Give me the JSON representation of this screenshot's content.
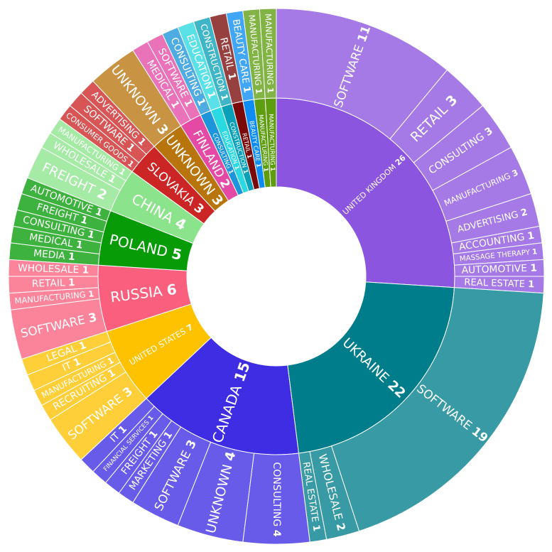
{
  "chart_data": {
    "type": "sunburst",
    "title": "",
    "colors": {
      "United Kingdom": "#8c55e0",
      "Ukraine": "#007d8a",
      "Canada": "#3f2de4",
      "United States": "#fec200",
      "Russia": "#fa607e",
      "Poland": "#079c07",
      "China": "#8be48b",
      "Slovakia": "#cc2525",
      "Unknown": "#b8740d",
      "Finland": "#e44aa5",
      "Education": "#2bd9e2",
      "Retail": "#7a0a0a",
      "Beauty Care": "#0d8df4",
      "Manufacturing": "#5e9d10",
      "Construction": "#0aa0b8",
      "Software": "#ff8a00",
      "Consulting": "#1d95db"
    },
    "countries": [
      {
        "name": "United Kingdom",
        "value": 26,
        "children": [
          {
            "name": "Software",
            "value": 11
          },
          {
            "name": "Retail",
            "value": 3
          },
          {
            "name": "Consulting",
            "value": 3
          },
          {
            "name": "Manufacturing",
            "value": 3
          },
          {
            "name": "Advertising",
            "value": 2
          },
          {
            "name": "Accounting",
            "value": 1
          },
          {
            "name": "Massage Therapy",
            "value": 1
          },
          {
            "name": "Automotive",
            "value": 1
          },
          {
            "name": "Real Estate",
            "value": 1
          }
        ]
      },
      {
        "name": "Ukraine",
        "value": 22,
        "children": [
          {
            "name": "Software",
            "value": 19
          },
          {
            "name": "Wholesale",
            "value": 2
          },
          {
            "name": "Real Estate",
            "value": 1
          }
        ]
      },
      {
        "name": "Canada",
        "value": 15,
        "children": [
          {
            "name": "Consulting",
            "value": 4
          },
          {
            "name": "Unknown",
            "value": 4
          },
          {
            "name": "Software",
            "value": 3
          },
          {
            "name": "Marketing",
            "value": 1
          },
          {
            "name": "Freight",
            "value": 1
          },
          {
            "name": "Financial Services",
            "value": 1
          },
          {
            "name": "IT",
            "value": 1
          }
        ]
      },
      {
        "name": "United States",
        "value": 7,
        "children": [
          {
            "name": "Software",
            "value": 3
          },
          {
            "name": "Recruiting",
            "value": 1
          },
          {
            "name": "Manufacturing",
            "value": 1
          },
          {
            "name": "IT",
            "value": 1
          },
          {
            "name": "Legal",
            "value": 1
          }
        ]
      },
      {
        "name": "Russia",
        "value": 6,
        "children": [
          {
            "name": "Software",
            "value": 3
          },
          {
            "name": "Manufacturing",
            "value": 1
          },
          {
            "name": "Retail",
            "value": 1
          },
          {
            "name": "Wholesale",
            "value": 1
          }
        ]
      },
      {
        "name": "Poland",
        "value": 5,
        "children": [
          {
            "name": "Media",
            "value": 1
          },
          {
            "name": "Medical",
            "value": 1
          },
          {
            "name": "Consulting",
            "value": 1
          },
          {
            "name": "Freight",
            "value": 1
          },
          {
            "name": "Automotive",
            "value": 1
          }
        ]
      },
      {
        "name": "China",
        "value": 4,
        "children": [
          {
            "name": "Freight",
            "value": 2
          },
          {
            "name": "Wholesale",
            "value": 1
          },
          {
            "name": "Manufacturing",
            "value": 1
          }
        ]
      },
      {
        "name": "Slovakia",
        "value": 3,
        "children": [
          {
            "name": "Consumer Goods",
            "value": 1
          },
          {
            "name": "Software",
            "value": 1
          },
          {
            "name": "Advertising",
            "value": 1
          }
        ]
      },
      {
        "name": "Unknown",
        "value": 3,
        "children": [
          {
            "name": "Unknown",
            "value": 3
          }
        ]
      },
      {
        "name": "Finland",
        "value": 2,
        "children": [
          {
            "name": "Medical",
            "value": 1
          },
          {
            "name": "Software",
            "value": 1
          }
        ]
      },
      {
        "name": "Consulting",
        "value": 1,
        "children": [
          {
            "name": "Consulting",
            "value": 1
          }
        ]
      },
      {
        "name": "Education",
        "value": 1,
        "children": [
          {
            "name": "Education",
            "value": 1
          }
        ]
      },
      {
        "name": "Construction",
        "value": 1,
        "children": [
          {
            "name": "Construction",
            "value": 1
          }
        ]
      },
      {
        "name": "Retail",
        "value": 1,
        "children": [
          {
            "name": "Retail",
            "value": 1
          }
        ]
      },
      {
        "name": "Beauty Care",
        "value": 1,
        "children": [
          {
            "name": "Beauty Care",
            "value": 1
          }
        ]
      },
      {
        "name": "Manufacturing",
        "value": 1,
        "children": [
          {
            "name": "Manufacturing",
            "value": 1
          }
        ]
      },
      {
        "name": "Manufacturing",
        "value": 1,
        "children": [
          {
            "name": "Manufacturing",
            "value": 1
          }
        ]
      }
    ]
  }
}
